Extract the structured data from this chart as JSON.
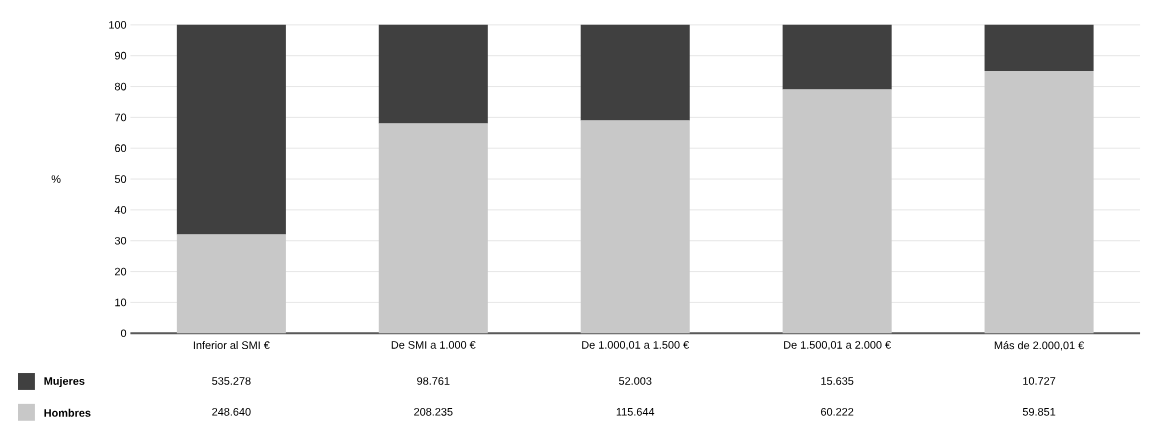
{
  "chart_data": {
    "type": "bar",
    "stacked": true,
    "ylabel": "%",
    "categories": [
      "Inferior al SMI €",
      "De SMI a 1.000 €",
      "De 1.000,01 a 1.500 €",
      "De 1.500,01 a 2.000 €",
      "Más de 2.000,01 €"
    ],
    "series": [
      {
        "name": "Hombres",
        "color": "#c8c8c8",
        "values": [
          32,
          68,
          69,
          79,
          85
        ]
      },
      {
        "name": "Mujeres",
        "color": "#404040",
        "values": [
          68,
          32,
          31,
          21,
          15
        ]
      }
    ],
    "annotations": [
      "535.278",
      "98.761",
      "52.003",
      "15.635",
      "10.727",
      "248.640",
      "208.235",
      "115.644",
      "60.222",
      "59.851"
    ],
    "ylim": [
      0,
      100
    ],
    "yticks": [
      0,
      10,
      20,
      30,
      40,
      50,
      60,
      70,
      80,
      90,
      100
    ],
    "grid": "y",
    "legend": "bottom left"
  }
}
